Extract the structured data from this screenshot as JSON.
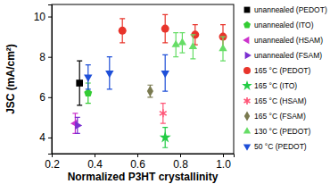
{
  "chart_data": {
    "type": "scatter",
    "x_label": "Normalized P3HT crystallinity",
    "y_label": "JSC (mA/cm²)",
    "xlim": [
      0.2,
      1.05
    ],
    "xticks": [
      {
        "value": 0.2,
        "label": "0.2"
      },
      {
        "value": 0.4,
        "label": "0.4"
      },
      {
        "value": 0.6,
        "label": "0.6"
      },
      {
        "value": 0.8,
        "label": "0.8"
      },
      {
        "value": 1.0,
        "label": "1.0"
      }
    ],
    "ylim": [
      3.2,
      10.6
    ],
    "yticks": [
      4,
      6,
      8,
      10
    ],
    "legend": "right",
    "series": [
      {
        "name": "unannealed (PEDOT)",
        "color": "#000000",
        "marker": "square",
        "x": [
          0.33
        ],
        "values": [
          6.7
        ],
        "errors": [
          1.1
        ]
      },
      {
        "name": "unannealed (ITO)",
        "color": "#33cc33",
        "marker": "pentagon",
        "x": [
          0.37
        ],
        "values": [
          6.2
        ],
        "errors": [
          0.5
        ]
      },
      {
        "name": "unannealed (HSAM)",
        "color": "#cc33cc",
        "marker": "triangle-left",
        "x": [
          0.31
        ],
        "values": [
          4.7
        ],
        "errors": [
          0.5
        ]
      },
      {
        "name": "unannealed (FSAM)",
        "color": "#7a2fd0",
        "marker": "triangle-right",
        "x": [
          0.32
        ],
        "values": [
          4.6
        ],
        "errors": [
          0.4
        ]
      },
      {
        "name": "165 °C (PEDOT)",
        "color": "#e8342b",
        "marker": "circle",
        "x": [
          0.53,
          0.73,
          0.87,
          1.0
        ],
        "values": [
          9.3,
          9.4,
          9.1,
          9.0
        ],
        "errors": [
          0.6,
          0.7,
          0.5,
          0.6
        ]
      },
      {
        "name": "165 °C (ITO)",
        "color": "#22cc44",
        "marker": "star",
        "x": [
          0.73
        ],
        "values": [
          4.0
        ],
        "errors": [
          0.5
        ]
      },
      {
        "name": "165 °C (HSAM)",
        "color": "#ff5577",
        "marker": "asterisk",
        "x": [
          0.72
        ],
        "values": [
          5.2
        ],
        "errors": [
          0.5
        ]
      },
      {
        "name": "165 °C (FSAM)",
        "color": "#7a7a50",
        "marker": "diamond",
        "x": [
          0.66
        ],
        "values": [
          6.3
        ],
        "errors": [
          0.3
        ]
      },
      {
        "name": "130 °C (PEDOT)",
        "color": "#66dd66",
        "marker": "triangle-up",
        "x": [
          0.78,
          0.81,
          0.86,
          1.0
        ],
        "values": [
          8.6,
          8.7,
          8.5,
          8.4
        ],
        "errors": [
          0.6,
          0.5,
          0.6,
          0.6
        ]
      },
      {
        "name": "50 °C (PEDOT)",
        "color": "#1e4fd8",
        "marker": "triangle-down",
        "x": [
          0.37,
          0.47,
          0.73
        ],
        "values": [
          7.0,
          7.2,
          7.2
        ],
        "errors": [
          0.6,
          0.8,
          0.9
        ]
      }
    ]
  }
}
